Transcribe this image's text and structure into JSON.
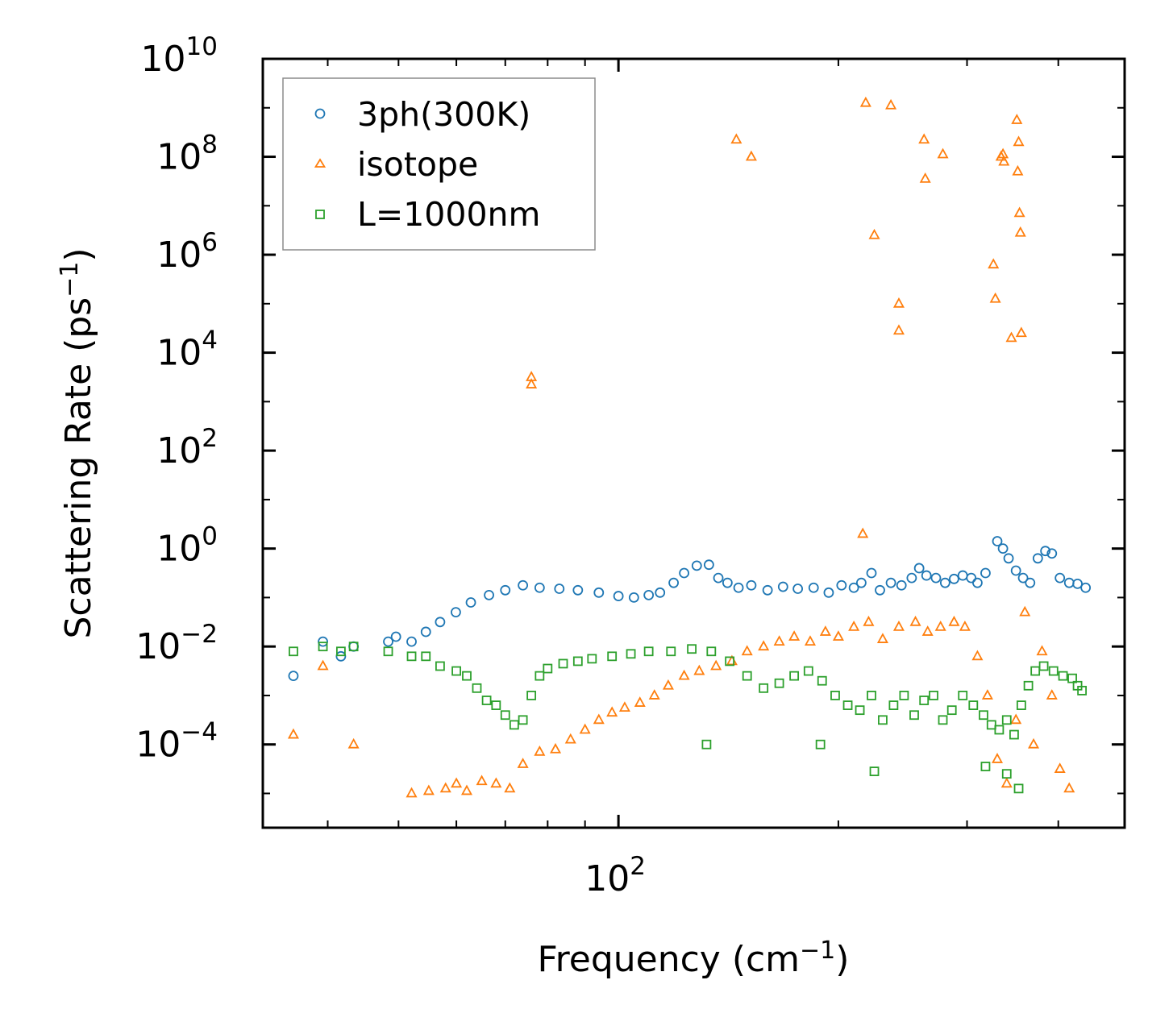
{
  "chart_data": {
    "type": "scatter",
    "title": "",
    "xlabel": "Frequency (cm",
    "xlabel_sup": "−1",
    "xlabel_end": ")",
    "ylabel": "Scattering Rate (ps",
    "ylabel_sup": "−1",
    "ylabel_end": ")",
    "xscale": "log",
    "yscale": "log",
    "xlim": [
      32.6,
      493.0
    ],
    "ylim_exp": [
      -5.7,
      10.0
    ],
    "x_tick_labels": [
      {
        "base": "10",
        "exp": "2",
        "value": 100
      }
    ],
    "y_tick_labels": [
      {
        "base": "10",
        "exp": "10",
        "exp_value": 10
      },
      {
        "base": "10",
        "exp": "8",
        "exp_value": 8
      },
      {
        "base": "10",
        "exp": "6",
        "exp_value": 6
      },
      {
        "base": "10",
        "exp": "4",
        "exp_value": 4
      },
      {
        "base": "10",
        "exp": "2",
        "exp_value": 2
      },
      {
        "base": "10",
        "exp": "0",
        "exp_value": 0
      },
      {
        "base": "10",
        "exp": "−2",
        "exp_value": -2
      },
      {
        "base": "10",
        "exp": "−4",
        "exp_value": -4
      }
    ],
    "legend_position": "top-left",
    "series": [
      {
        "name": "3ph(300K)",
        "marker": "circle",
        "color": "#1f77b4",
        "points": [
          [
            35.9,
            -2.6
          ],
          [
            39.4,
            -1.9
          ],
          [
            41.7,
            -2.2
          ],
          [
            43.4,
            -2.0
          ],
          [
            48.4,
            -1.9
          ],
          [
            49.6,
            -1.8
          ],
          [
            52.1,
            -1.9
          ],
          [
            54.5,
            -1.7
          ],
          [
            57,
            -1.5
          ],
          [
            59.9,
            -1.3
          ],
          [
            62.8,
            -1.1
          ],
          [
            66.5,
            -0.95
          ],
          [
            70,
            -0.85
          ],
          [
            74,
            -0.75
          ],
          [
            78,
            -0.8
          ],
          [
            83,
            -0.82
          ],
          [
            88,
            -0.85
          ],
          [
            94,
            -0.9
          ],
          [
            100,
            -0.97
          ],
          [
            105,
            -1.0
          ],
          [
            110,
            -0.95
          ],
          [
            114,
            -0.9
          ],
          [
            119,
            -0.7
          ],
          [
            123,
            -0.5
          ],
          [
            128,
            -0.35
          ],
          [
            133,
            -0.33
          ],
          [
            137,
            -0.6
          ],
          [
            141,
            -0.7
          ],
          [
            146,
            -0.8
          ],
          [
            152,
            -0.75
          ],
          [
            160,
            -0.85
          ],
          [
            168,
            -0.78
          ],
          [
            176,
            -0.82
          ],
          [
            185,
            -0.8
          ],
          [
            194,
            -0.9
          ],
          [
            202,
            -0.75
          ],
          [
            210,
            -0.8
          ],
          [
            215,
            -0.7
          ],
          [
            222,
            -0.5
          ],
          [
            228,
            -0.85
          ],
          [
            236,
            -0.7
          ],
          [
            244,
            -0.75
          ],
          [
            252,
            -0.6
          ],
          [
            258,
            -0.4
          ],
          [
            264,
            -0.55
          ],
          [
            272,
            -0.6
          ],
          [
            280,
            -0.7
          ],
          [
            288,
            -0.62
          ],
          [
            296,
            -0.55
          ],
          [
            304,
            -0.6
          ],
          [
            310,
            -0.7
          ],
          [
            318,
            -0.5
          ],
          [
            330,
            0.15
          ],
          [
            336,
            0.0
          ],
          [
            342,
            -0.2
          ],
          [
            350,
            -0.45
          ],
          [
            358,
            -0.6
          ],
          [
            366,
            -0.7
          ],
          [
            375,
            -0.2
          ],
          [
            384,
            -0.05
          ],
          [
            392,
            -0.1
          ],
          [
            402,
            -0.6
          ],
          [
            414,
            -0.7
          ],
          [
            425,
            -0.72
          ],
          [
            436,
            -0.8
          ]
        ]
      },
      {
        "name": "isotope",
        "marker": "triangle",
        "color": "#ff7f0e",
        "points": [
          [
            35.9,
            -3.8
          ],
          [
            39.4,
            -2.4
          ],
          [
            43.4,
            -4.0
          ],
          [
            52.1,
            -5.0
          ],
          [
            55,
            -4.95
          ],
          [
            58,
            -4.9
          ],
          [
            60,
            -4.8
          ],
          [
            62,
            -4.95
          ],
          [
            65,
            -4.75
          ],
          [
            68,
            -4.8
          ],
          [
            71,
            -4.9
          ],
          [
            74,
            -4.4
          ],
          [
            78,
            -4.15
          ],
          [
            82,
            -4.1
          ],
          [
            86,
            -3.9
          ],
          [
            90,
            -3.7
          ],
          [
            94,
            -3.5
          ],
          [
            98,
            -3.35
          ],
          [
            102,
            -3.25
          ],
          [
            107,
            -3.15
          ],
          [
            112,
            -3.0
          ],
          [
            117,
            -2.8
          ],
          [
            123,
            -2.6
          ],
          [
            129,
            -2.5
          ],
          [
            136,
            -2.4
          ],
          [
            143,
            -2.3
          ],
          [
            150,
            -2.1
          ],
          [
            158,
            -2.0
          ],
          [
            166,
            -1.9
          ],
          [
            174,
            -1.8
          ],
          [
            183,
            -1.9
          ],
          [
            192,
            -1.7
          ],
          [
            200,
            -1.8
          ],
          [
            210,
            -1.6
          ],
          [
            220,
            -1.5
          ],
          [
            230,
            -1.85
          ],
          [
            242,
            -1.6
          ],
          [
            255,
            -1.5
          ],
          [
            265,
            -1.7
          ],
          [
            276,
            -1.6
          ],
          [
            288,
            -1.5
          ],
          [
            298,
            -1.6
          ],
          [
            310,
            -2.2
          ],
          [
            320,
            -3.0
          ],
          [
            330,
            -4.3
          ],
          [
            340,
            -4.8
          ],
          [
            350,
            -3.5
          ],
          [
            360,
            -1.3
          ],
          [
            370,
            -4.0
          ],
          [
            380,
            -2.1
          ],
          [
            392,
            -3.0
          ],
          [
            402,
            -4.5
          ],
          [
            414,
            -4.9
          ],
          [
            76,
            3.5
          ],
          [
            76,
            3.35
          ],
          [
            145,
            8.35
          ],
          [
            152,
            8.0
          ],
          [
            218,
            9.1
          ],
          [
            224,
            6.4
          ],
          [
            236,
            9.05
          ],
          [
            242,
            5.0
          ],
          [
            242,
            4.45
          ],
          [
            262,
            8.35
          ],
          [
            263,
            7.55
          ],
          [
            278,
            8.05
          ],
          [
            326,
            5.8
          ],
          [
            328,
            5.1
          ],
          [
            334,
            8.0
          ],
          [
            336,
            8.05
          ],
          [
            337,
            7.9
          ],
          [
            345,
            4.3
          ],
          [
            351,
            8.75
          ],
          [
            352,
            7.7
          ],
          [
            353,
            8.3
          ],
          [
            354,
            6.85
          ],
          [
            355,
            6.45
          ],
          [
            356,
            4.4
          ],
          [
            216,
            0.3
          ]
        ]
      },
      {
        "name": "L=1000nm",
        "marker": "square",
        "color": "#2ca02c",
        "points": [
          [
            35.9,
            -2.1
          ],
          [
            39.4,
            -2.0
          ],
          [
            41.7,
            -2.1
          ],
          [
            43.4,
            -2.0
          ],
          [
            48.4,
            -2.1
          ],
          [
            52.1,
            -2.2
          ],
          [
            54.5,
            -2.2
          ],
          [
            57,
            -2.4
          ],
          [
            60,
            -2.5
          ],
          [
            62,
            -2.6
          ],
          [
            64,
            -2.85
          ],
          [
            66,
            -3.1
          ],
          [
            68,
            -3.2
          ],
          [
            70,
            -3.4
          ],
          [
            72,
            -3.6
          ],
          [
            74,
            -3.5
          ],
          [
            76,
            -3.0
          ],
          [
            78,
            -2.6
          ],
          [
            80,
            -2.45
          ],
          [
            84,
            -2.35
          ],
          [
            88,
            -2.3
          ],
          [
            92,
            -2.25
          ],
          [
            98,
            -2.2
          ],
          [
            104,
            -2.15
          ],
          [
            110,
            -2.1
          ],
          [
            118,
            -2.1
          ],
          [
            126,
            -2.05
          ],
          [
            134,
            -2.1
          ],
          [
            142,
            -2.3
          ],
          [
            150,
            -2.6
          ],
          [
            158,
            -2.85
          ],
          [
            166,
            -2.75
          ],
          [
            174,
            -2.6
          ],
          [
            182,
            -2.5
          ],
          [
            190,
            -2.7
          ],
          [
            198,
            -3.0
          ],
          [
            206,
            -3.2
          ],
          [
            214,
            -3.3
          ],
          [
            222,
            -3.0
          ],
          [
            230,
            -3.5
          ],
          [
            238,
            -3.2
          ],
          [
            246,
            -3.0
          ],
          [
            254,
            -3.4
          ],
          [
            262,
            -3.1
          ],
          [
            270,
            -3.0
          ],
          [
            278,
            -3.5
          ],
          [
            286,
            -3.3
          ],
          [
            296,
            -3.0
          ],
          [
            306,
            -3.2
          ],
          [
            316,
            -3.4
          ],
          [
            324,
            -3.6
          ],
          [
            332,
            -3.7
          ],
          [
            340,
            -3.5
          ],
          [
            348,
            -3.8
          ],
          [
            356,
            -3.2
          ],
          [
            364,
            -2.8
          ],
          [
            372,
            -2.5
          ],
          [
            382,
            -2.4
          ],
          [
            394,
            -2.5
          ],
          [
            406,
            -2.6
          ],
          [
            418,
            -2.65
          ],
          [
            425,
            -2.8
          ],
          [
            431,
            -2.9
          ],
          [
            132,
            -4.0
          ],
          [
            189,
            -4.0
          ],
          [
            224,
            -4.55
          ],
          [
            318,
            -4.45
          ],
          [
            340,
            -4.6
          ],
          [
            353,
            -4.9
          ]
        ]
      }
    ]
  }
}
